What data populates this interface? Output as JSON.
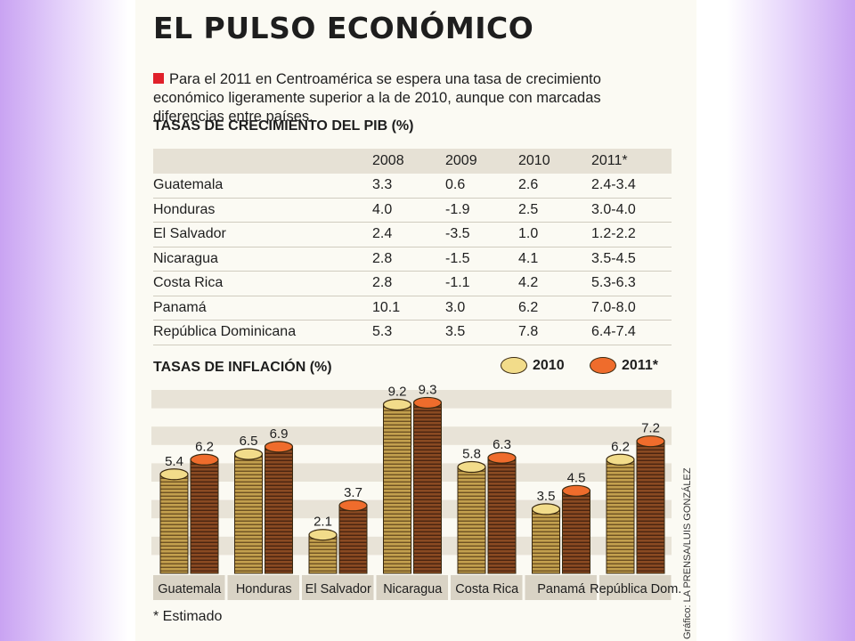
{
  "title": "EL PULSO ECONÓMICO",
  "intro": "Para el 2011 en Centroamérica se espera una tasa de crecimiento económico ligeramente superior a la de 2010, aunque con marcadas diferencias entre países.",
  "gdp_section_title": "TASAS DE CRECIMIENTO DEL PIB (%)",
  "gdp_table": {
    "headers": [
      "",
      "2008",
      "2009",
      "2010",
      "2011*"
    ],
    "rows": [
      [
        "Guatemala",
        "3.3",
        "0.6",
        "2.6",
        "2.4-3.4"
      ],
      [
        "Honduras",
        "4.0",
        "-1.9",
        "2.5",
        "3.0-4.0"
      ],
      [
        "El Salvador",
        "2.4",
        "-3.5",
        "1.0",
        "1.2-2.2"
      ],
      [
        "Nicaragua",
        "2.8",
        "-1.5",
        "4.1",
        "3.5-4.5"
      ],
      [
        "Costa Rica",
        "2.8",
        "-1.1",
        "4.2",
        "5.3-6.3"
      ],
      [
        "Panamá",
        "10.1",
        "3.0",
        "6.2",
        "7.0-8.0"
      ],
      [
        "República Dominicana",
        "5.3",
        "3.5",
        "7.8",
        "6.4-7.4"
      ]
    ]
  },
  "inflation_section_title": "TASAS DE INFLACIÓN (%)",
  "legend": {
    "s2010": "2010",
    "s2011": "2011*"
  },
  "colors": {
    "y2010": "#f2dc8a",
    "y2011": "#ef6c2c",
    "stack_light": "#c3a04e",
    "stack_dark": "#8a4a22",
    "band": "#e8e3d7"
  },
  "chart_data": {
    "type": "bar",
    "title": "TASAS DE INFLACIÓN (%)",
    "categories": [
      "Guatemala",
      "Honduras",
      "El Salvador",
      "Nicaragua",
      "Costa Rica",
      "Panamá",
      "República Dom."
    ],
    "series": [
      {
        "name": "2010",
        "values": [
          5.4,
          6.5,
          2.1,
          9.2,
          5.8,
          3.5,
          6.2
        ],
        "labels": [
          "5.4",
          "6.5",
          "2.1",
          "9.2",
          "5.8",
          "3.5",
          "6.2"
        ]
      },
      {
        "name": "2011*",
        "values": [
          6.2,
          6.9,
          3.7,
          9.3,
          6.3,
          4.5,
          7.2
        ],
        "labels": [
          "6.2",
          "6.9",
          "3.7",
          "9.3",
          "6.3",
          "4.5",
          "7.2"
        ]
      }
    ],
    "ylim": [
      0,
      10
    ],
    "grid": true,
    "legend_position": "top-right"
  },
  "footnote": "* Estimado",
  "credit": "Gráfico: LA PRENSA/LUIS GONZÁLEZ"
}
